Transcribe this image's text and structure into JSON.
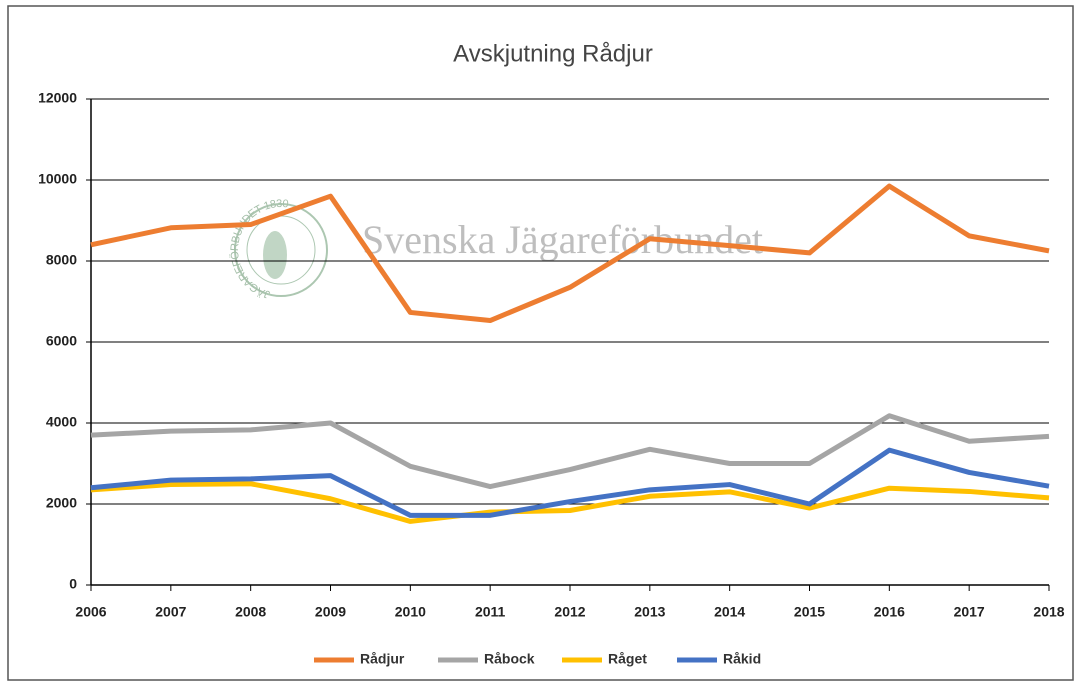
{
  "chart_data": {
    "type": "line",
    "title": "Avskjutning Rådjur",
    "watermark": "Svenska Jägareförbundet",
    "logo_text": "JÄGAREFÖRBUNDET 1830",
    "x": [
      2006,
      2007,
      2008,
      2009,
      2010,
      2011,
      2012,
      2013,
      2014,
      2015,
      2016,
      2017,
      2018
    ],
    "xlim": [
      2006,
      2018
    ],
    "xticks": [
      2006,
      2007,
      2008,
      2009,
      2010,
      2011,
      2012,
      2013,
      2014,
      2015,
      2016,
      2017,
      2018
    ],
    "ylim": [
      0,
      12000
    ],
    "yticks": [
      0,
      2000,
      4000,
      6000,
      8000,
      10000,
      12000
    ],
    "grid": true,
    "legend": "bottom",
    "series": [
      {
        "name": "Rådjur",
        "color": "#ed7d31",
        "values": [
          8400,
          8820,
          8900,
          9600,
          6730,
          6530,
          7350,
          8550,
          8380,
          8200,
          9850,
          8620,
          8250
        ]
      },
      {
        "name": "Råbock",
        "color": "#a5a5a5",
        "values": [
          3700,
          3800,
          3830,
          4000,
          2930,
          2430,
          2850,
          3350,
          3000,
          3000,
          4180,
          3550,
          3670
        ]
      },
      {
        "name": "Råget",
        "color": "#ffc000",
        "values": [
          2350,
          2480,
          2500,
          2130,
          1570,
          1800,
          1840,
          2190,
          2300,
          1900,
          2390,
          2310,
          2150
        ]
      },
      {
        "name": "Råkid",
        "color": "#4472c4",
        "values": [
          2400,
          2590,
          2620,
          2700,
          1720,
          1720,
          2060,
          2350,
          2480,
          2000,
          3330,
          2780,
          2440
        ]
      }
    ]
  }
}
